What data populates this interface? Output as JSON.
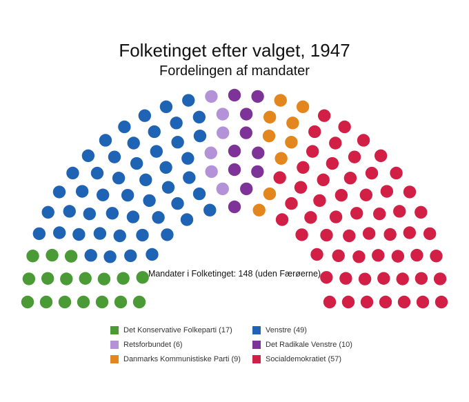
{
  "title": "Folketinget efter valget, 1947",
  "subtitle": "Fordelingen af mandater",
  "total_label": "Mandater i Folketinget: 148 (uden Færøerne)",
  "chart_data": {
    "type": "parliament",
    "total_seats": 148,
    "parties": [
      {
        "name": "Det Konservative Folkeparti",
        "seats": 17,
        "color": "#4a9a35",
        "legend": "Det Konservative Folkeparti (17)"
      },
      {
        "name": "Venstre",
        "seats": 49,
        "color": "#1f63b4",
        "legend": "Venstre (49)"
      },
      {
        "name": "Retsforbundet",
        "seats": 6,
        "color": "#b392d8",
        "legend": "Retsforbundet (6)"
      },
      {
        "name": "Det Radikale Venstre",
        "seats": 10,
        "color": "#7d3397",
        "legend": "Det Radikale Venstre (10)"
      },
      {
        "name": "Danmarks Kommunistiske Parti",
        "seats": 9,
        "color": "#e3861d",
        "legend": "Danmarks Kommunistiske Parti (9)"
      },
      {
        "name": "Socialdemokratiet",
        "seats": 57,
        "color": "#d11f45",
        "legend": "Socialdemokratiet (57)"
      }
    ],
    "legend_order": [
      "Det Konservative Folkeparti",
      "Venstre",
      "Retsforbundet",
      "Det Radikale Venstre",
      "Danmarks Kommunistiske Parti",
      "Socialdemokratiet"
    ]
  }
}
